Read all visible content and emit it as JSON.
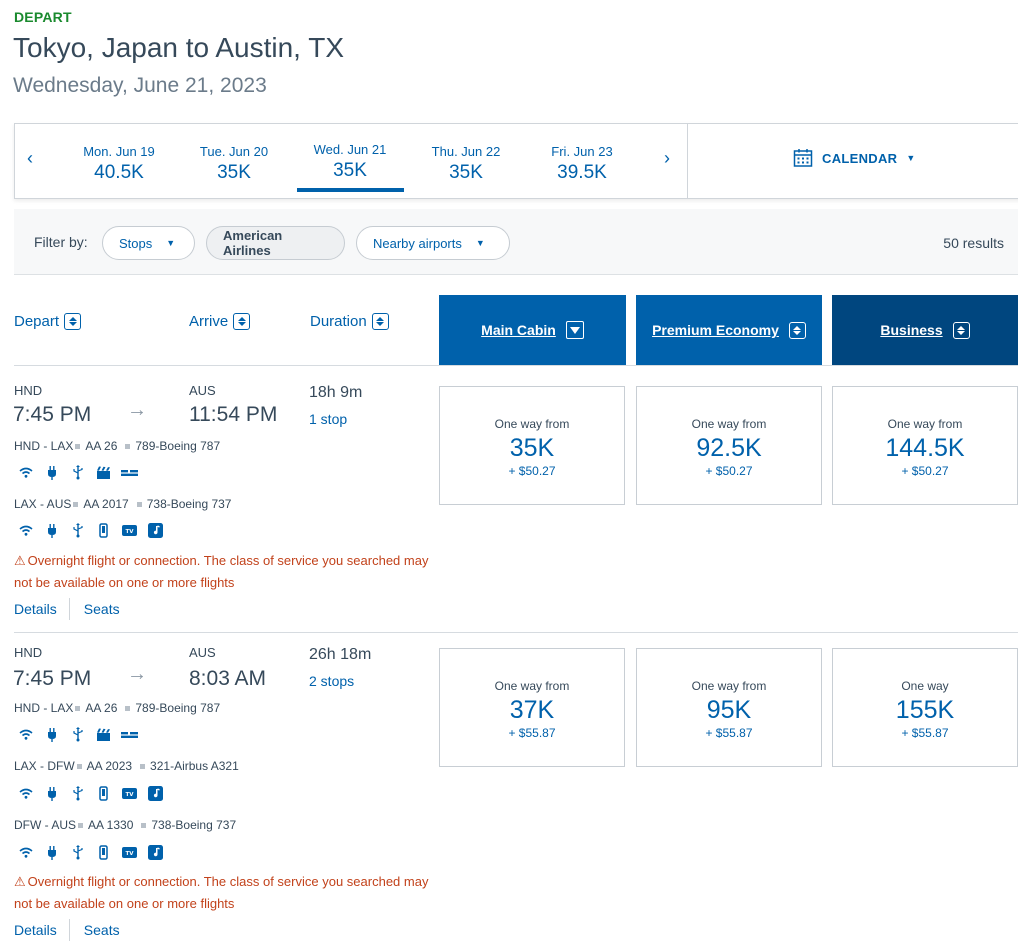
{
  "header": {
    "depart_tag": "DEPART",
    "route": "Tokyo, Japan to Austin, TX",
    "date": "Wednesday, June 21, 2023"
  },
  "date_strip": {
    "prev": "‹",
    "next": "›",
    "days": [
      {
        "label": "Mon. Jun 19",
        "price": "40.5K"
      },
      {
        "label": "Tue. Jun 20",
        "price": "35K"
      },
      {
        "label": "Wed. Jun 21",
        "price": "35K"
      },
      {
        "label": "Thu. Jun 22",
        "price": "35K"
      },
      {
        "label": "Fri. Jun 23",
        "price": "39.5K"
      }
    ],
    "calendar_label": "CALENDAR"
  },
  "filters": {
    "label": "Filter by:",
    "stops": "Stops",
    "airline": "American Airlines",
    "nearby": "Nearby airports",
    "results": "50 results"
  },
  "sort_header": {
    "depart": "Depart",
    "arrive": "Arrive",
    "duration": "Duration",
    "cabins": [
      "Main Cabin",
      "Premium Economy",
      "Business"
    ]
  },
  "colors": {
    "main_cabin": "#0061ab",
    "premium_economy": "#0061ab",
    "business": "#00467f"
  },
  "flights": [
    {
      "dep_code": "HND",
      "dep_time": "7:45 PM",
      "arr_code": "AUS",
      "arr_time": "11:54 PM",
      "duration": "18h 9m",
      "stops": "1 stop",
      "segments": [
        {
          "route": "HND - LAX",
          "flight": "AA 26",
          "aircraft": "789-Boeing 787",
          "amenities": [
            "wifi-icon",
            "power-icon",
            "usb-icon",
            "entertainment-icon",
            "flat-bed-icon"
          ]
        },
        {
          "route": "LAX - AUS",
          "flight": "AA 2017",
          "aircraft": "738-Boeing 737",
          "amenities": [
            "wifi-icon",
            "power-icon",
            "usb-icon",
            "device-icon",
            "tv-icon",
            "music-icon"
          ]
        }
      ],
      "warning": "Overnight flight or connection. The class of service you searched may not be available on one or more flights",
      "details": "Details",
      "seats": "Seats",
      "fares": [
        {
          "label": "One way from",
          "price": "35K",
          "tax": "+ $50.27"
        },
        {
          "label": "One way from",
          "price": "92.5K",
          "tax": "+ $50.27"
        },
        {
          "label": "One way from",
          "price": "144.5K",
          "tax": "+ $50.27"
        }
      ]
    },
    {
      "dep_code": "HND",
      "dep_time": "7:45 PM",
      "arr_code": "AUS",
      "arr_time": "8:03 AM",
      "duration": "26h 18m",
      "stops": "2 stops",
      "segments": [
        {
          "route": "HND - LAX",
          "flight": "AA 26",
          "aircraft": "789-Boeing 787",
          "amenities": [
            "wifi-icon",
            "power-icon",
            "usb-icon",
            "entertainment-icon",
            "flat-bed-icon"
          ]
        },
        {
          "route": "LAX - DFW",
          "flight": "AA 2023",
          "aircraft": "321-Airbus A321",
          "amenities": [
            "wifi-icon",
            "power-icon",
            "usb-icon",
            "device-icon",
            "tv-icon",
            "music-icon"
          ]
        },
        {
          "route": "DFW - AUS",
          "flight": "AA 1330",
          "aircraft": "738-Boeing 737",
          "amenities": [
            "wifi-icon",
            "power-icon",
            "usb-icon",
            "device-icon",
            "tv-icon",
            "music-icon"
          ]
        }
      ],
      "warning": "Overnight flight or connection. The class of service you searched may not be available on one or more flights",
      "details": "Details",
      "seats": "Seats",
      "fares": [
        {
          "label": "One way from",
          "price": "37K",
          "tax": "+ $55.87"
        },
        {
          "label": "One way from",
          "price": "95K",
          "tax": "+ $55.87"
        },
        {
          "label": "One way",
          "price": "155K",
          "tax": "+ $55.87"
        }
      ]
    }
  ]
}
